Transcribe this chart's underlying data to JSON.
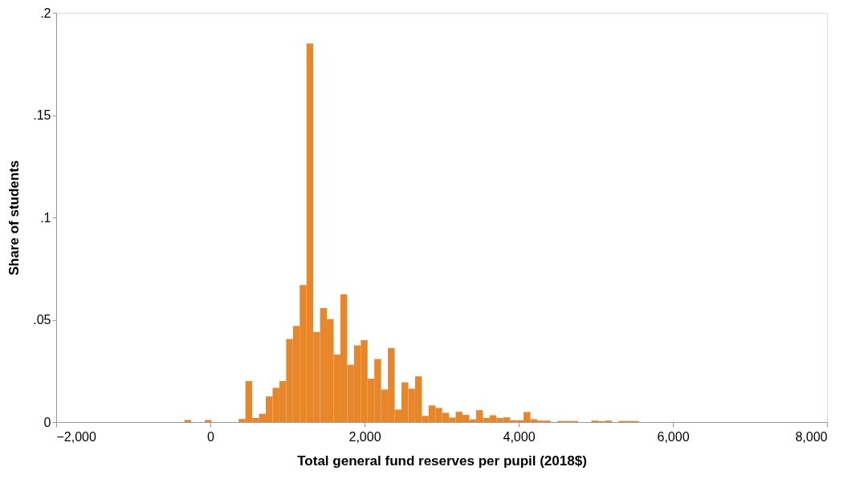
{
  "chart_data": {
    "type": "histogram",
    "xlabel": "Total general fund reserves per pupil (2018$)",
    "ylabel": "Share of students",
    "color": "#e8862a",
    "bins": [
      -337,
      -249,
      -161,
      -73,
      15,
      103,
      191,
      279,
      367,
      455,
      543,
      631,
      719,
      807,
      895,
      983,
      1071,
      1159,
      1247,
      1335,
      1423,
      1511,
      1599,
      1687,
      1775,
      1863,
      1951,
      2039,
      2127,
      2215,
      2303,
      2391,
      2479,
      2567,
      2655,
      2743,
      2831,
      2919,
      3007,
      3095,
      3183,
      3271,
      3359,
      3447,
      3535,
      3623,
      3711,
      3799,
      3887,
      3975,
      4063,
      4151,
      4239,
      4327,
      4415,
      4503,
      4591,
      4679,
      4767,
      4855,
      4943,
      5031,
      5119,
      5207,
      5295,
      5383,
      5471,
      5559
    ],
    "values": [
      0.001,
      0,
      0,
      0.001,
      0,
      0,
      0,
      0,
      0.0015,
      0.02,
      0.002,
      0.004,
      0.0125,
      0.0167,
      0.02,
      0.0406,
      0.047,
      0.067,
      0.185,
      0.044,
      0.0557,
      0.0503,
      0.033,
      0.0625,
      0.028,
      0.0375,
      0.04,
      0.0212,
      0.0308,
      0.0159,
      0.0362,
      0.0061,
      0.0194,
      0.0163,
      0.0223,
      0.003,
      0.0081,
      0.0069,
      0.0045,
      0.0022,
      0.005,
      0.0035,
      0.0013,
      0.0058,
      0.002,
      0.0033,
      0.002,
      0.0023,
      0.0009,
      0.0009,
      0.0049,
      0.0014,
      0.0007,
      0.0007,
      0,
      0.0005,
      0.0005,
      0.0005,
      0,
      0,
      0.0007,
      0.0004,
      0.0007,
      0,
      0.0005,
      0.0005,
      0.0005
    ],
    "xlim": [
      -2000,
      8000
    ],
    "xticks": [
      {
        "value": -2000,
        "label": "−2,000"
      },
      {
        "value": 0,
        "label": "0"
      },
      {
        "value": 2000,
        "label": "2,000"
      },
      {
        "value": 4000,
        "label": "4,000"
      },
      {
        "value": 6000,
        "label": "6,000"
      },
      {
        "value": 8000,
        "label": "8,000"
      }
    ],
    "ylim": [
      0,
      0.2
    ],
    "yticks": [
      {
        "value": 0,
        "label": "0"
      },
      {
        "value": 0.05,
        "label": ".05"
      },
      {
        "value": 0.1,
        "label": ".1"
      },
      {
        "value": 0.15,
        "label": ".15"
      },
      {
        "value": 0.2,
        "label": ".2"
      }
    ],
    "grid": false
  }
}
